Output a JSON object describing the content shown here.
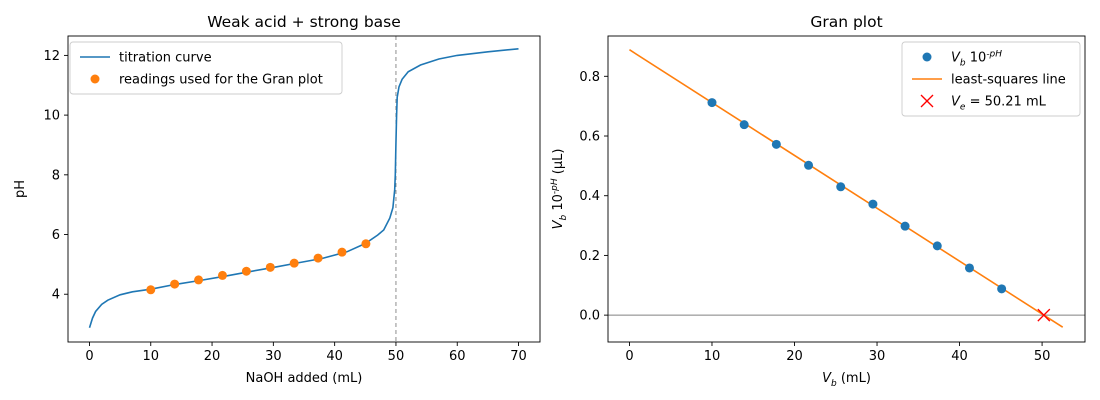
{
  "chart_data": [
    {
      "type": "line",
      "title": "Weak acid + strong base",
      "xlabel": "NaOH added (mL)",
      "ylabel": "pH",
      "xlim": [
        -3.5,
        73.5
      ],
      "ylim": [
        2.4,
        12.65
      ],
      "xticks": [
        0,
        10,
        20,
        30,
        40,
        50,
        60,
        70
      ],
      "yticks": [
        4,
        6,
        8,
        10,
        12
      ],
      "grid": false,
      "legend_position": "top-left",
      "equivalence_marker_x": 50,
      "series": [
        {
          "name": "titration curve",
          "color": "#1f77b4",
          "x": [
            0,
            0.5,
            1,
            2,
            3,
            5,
            7,
            10,
            14,
            18,
            22,
            26,
            30,
            34,
            38,
            42,
            45,
            47,
            48,
            49,
            49.5,
            49.8,
            49.9,
            50,
            50.1,
            50.2,
            50.5,
            51,
            52,
            54,
            57,
            60,
            65,
            70
          ],
          "y": [
            2.88,
            3.2,
            3.42,
            3.66,
            3.8,
            3.98,
            4.08,
            4.17,
            4.33,
            4.46,
            4.6,
            4.75,
            4.9,
            5.05,
            5.2,
            5.42,
            5.7,
            5.98,
            6.15,
            6.55,
            6.9,
            7.5,
            8.0,
            9.0,
            10.0,
            10.6,
            10.95,
            11.2,
            11.45,
            11.68,
            11.88,
            12.0,
            12.12,
            12.22
          ]
        },
        {
          "name": "readings used for the Gran plot",
          "color": "#ff7f0e",
          "x": [
            10.0,
            13.9,
            17.8,
            21.7,
            25.6,
            29.5,
            33.4,
            37.3,
            41.2,
            45.1
          ],
          "y": [
            4.15,
            4.34,
            4.48,
            4.63,
            4.77,
            4.9,
            5.04,
            5.21,
            5.41,
            5.69
          ]
        }
      ]
    },
    {
      "type": "scatter",
      "title": "Gran plot",
      "xlabel": "V_b (mL)",
      "ylabel": "V_b 10^-pH (µL)",
      "xlim": [
        -2.6,
        55.2
      ],
      "ylim": [
        -0.09,
        0.935
      ],
      "xticks": [
        0,
        10,
        20,
        30,
        40,
        50
      ],
      "yticks": [
        0.0,
        0.2,
        0.4,
        0.6,
        0.8
      ],
      "yticklabels": [
        "0.0",
        "0.2",
        "0.4",
        "0.6",
        "0.8"
      ],
      "grid": false,
      "legend_position": "top-right",
      "zero_line": 0,
      "series": [
        {
          "name": "V_b 10^-pH",
          "color": "#1f77b4",
          "x": [
            10.0,
            13.9,
            17.8,
            21.7,
            25.6,
            29.5,
            33.4,
            37.3,
            41.2,
            45.1
          ],
          "y": [
            0.712,
            0.638,
            0.572,
            0.502,
            0.43,
            0.372,
            0.298,
            0.232,
            0.158,
            0.088
          ]
        },
        {
          "name": "least-squares line",
          "color": "#ff7f0e",
          "x": [
            0,
            52.5
          ],
          "y": [
            0.889,
            -0.0405
          ]
        },
        {
          "name": "V_e = 50.21 mL",
          "color": "#ff0000",
          "marker": "x",
          "x": [
            50.21
          ],
          "y": [
            0.0
          ]
        }
      ]
    }
  ]
}
